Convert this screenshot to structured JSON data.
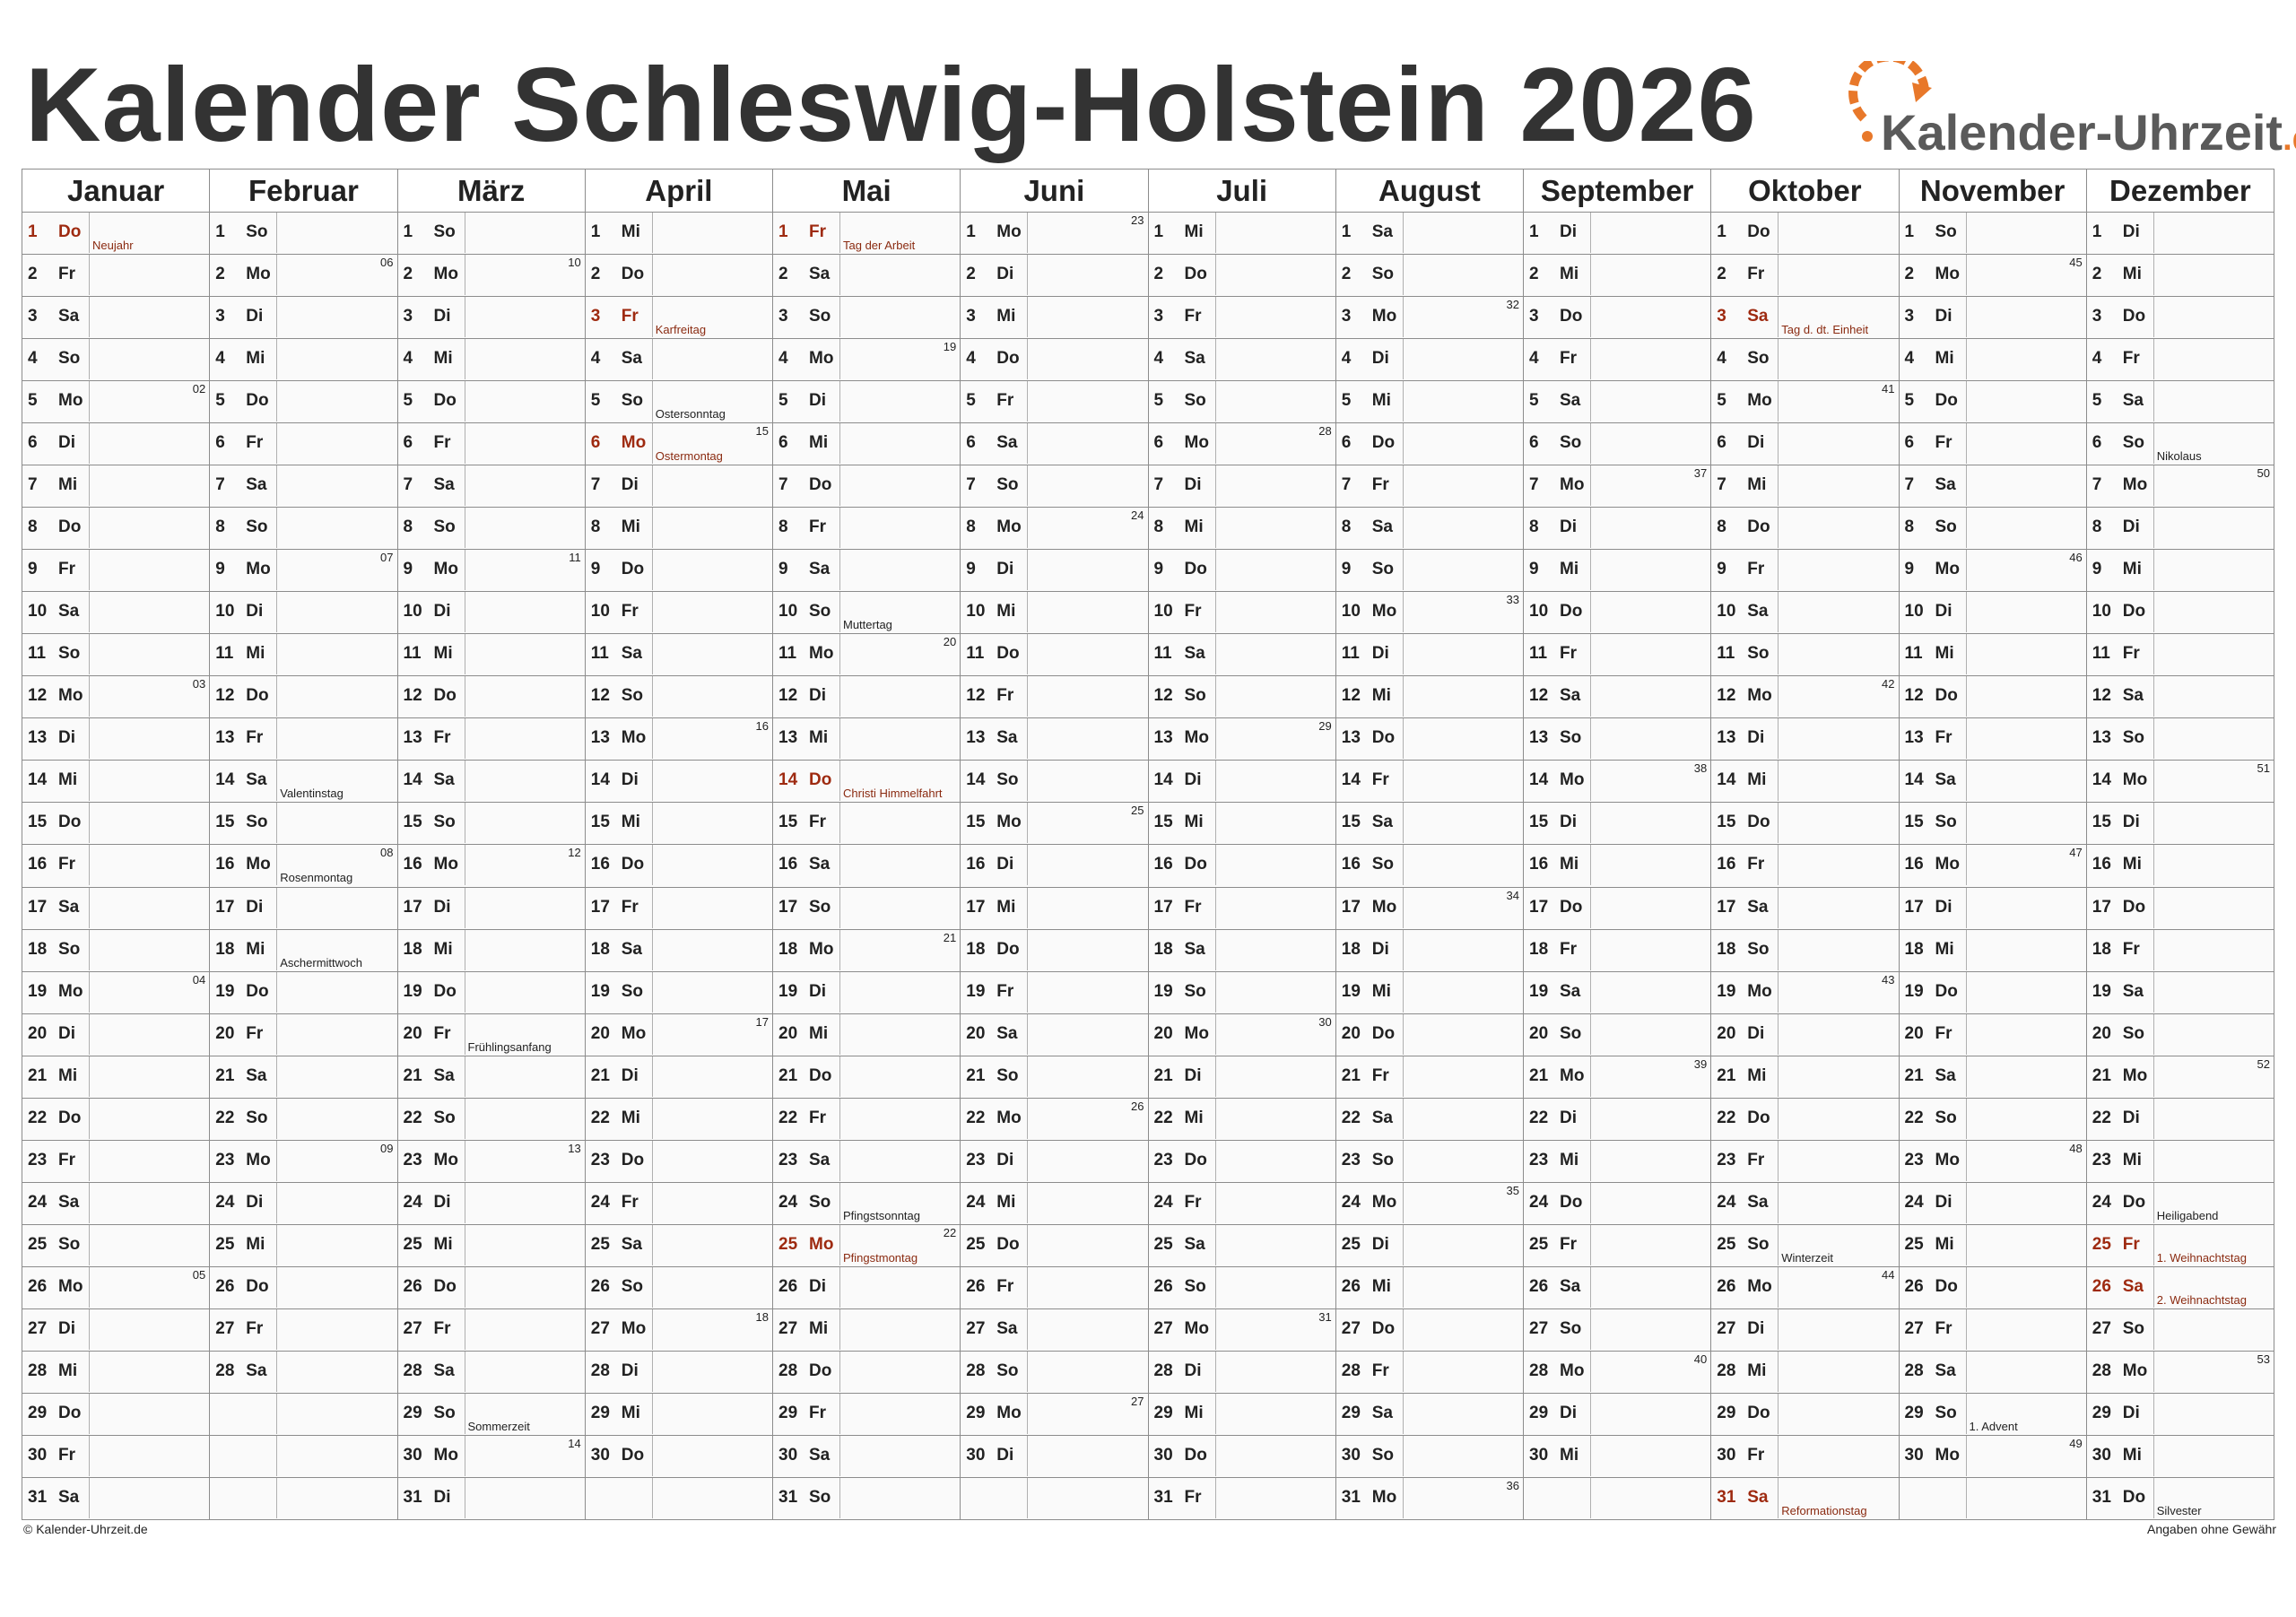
{
  "title": "Kalender Schleswig-Holstein 2026",
  "logo": {
    "name": "Kalender-Uhrzeit",
    "tld": ".de",
    "accent": "#e8782a"
  },
  "colors": {
    "saturday": "#fcc59b",
    "sunday": "#fdd000",
    "holiday_text": "#9e2a10"
  },
  "months": [
    {
      "name": "Januar",
      "first_weekday": 3,
      "days": 31
    },
    {
      "name": "Februar",
      "first_weekday": 6,
      "days": 28
    },
    {
      "name": "März",
      "first_weekday": 6,
      "days": 31
    },
    {
      "name": "April",
      "first_weekday": 2,
      "days": 30
    },
    {
      "name": "Mai",
      "first_weekday": 4,
      "days": 31
    },
    {
      "name": "Juni",
      "first_weekday": 0,
      "days": 30
    },
    {
      "name": "Juli",
      "first_weekday": 2,
      "days": 31
    },
    {
      "name": "August",
      "first_weekday": 5,
      "days": 31
    },
    {
      "name": "September",
      "first_weekday": 1,
      "days": 30
    },
    {
      "name": "Oktober",
      "first_weekday": 3,
      "days": 31
    },
    {
      "name": "November",
      "first_weekday": 6,
      "days": 30
    },
    {
      "name": "Dezember",
      "first_weekday": 1,
      "days": 31
    }
  ],
  "weekday_abbr": [
    "Mo",
    "Di",
    "Mi",
    "Do",
    "Fr",
    "Sa",
    "So"
  ],
  "holidays": [
    {
      "m": 0,
      "d": 1,
      "label": "Neujahr",
      "public": true
    },
    {
      "m": 1,
      "d": 14,
      "label": "Valentinstag",
      "public": false
    },
    {
      "m": 1,
      "d": 16,
      "label": "Rosenmontag",
      "public": false
    },
    {
      "m": 1,
      "d": 18,
      "label": "Aschermittwoch",
      "public": false
    },
    {
      "m": 2,
      "d": 20,
      "label": "Frühlingsanfang",
      "public": false
    },
    {
      "m": 2,
      "d": 29,
      "label": "Sommerzeit",
      "public": false
    },
    {
      "m": 3,
      "d": 3,
      "label": "Karfreitag",
      "public": true
    },
    {
      "m": 3,
      "d": 5,
      "label": "Ostersonntag",
      "public": false
    },
    {
      "m": 3,
      "d": 6,
      "label": "Ostermontag",
      "public": true
    },
    {
      "m": 4,
      "d": 1,
      "label": "Tag der Arbeit",
      "public": true
    },
    {
      "m": 4,
      "d": 10,
      "label": "Muttertag",
      "public": false
    },
    {
      "m": 4,
      "d": 14,
      "label": "Christi Himmelfahrt",
      "public": true
    },
    {
      "m": 4,
      "d": 24,
      "label": "Pfingstsonntag",
      "public": false
    },
    {
      "m": 4,
      "d": 25,
      "label": "Pfingstmontag",
      "public": true
    },
    {
      "m": 9,
      "d": 3,
      "label": "Tag d. dt. Einheit",
      "public": true
    },
    {
      "m": 9,
      "d": 25,
      "label": "Winterzeit",
      "public": false
    },
    {
      "m": 9,
      "d": 31,
      "label": "Reformationstag",
      "public": true
    },
    {
      "m": 10,
      "d": 29,
      "label": "1. Advent",
      "public": false
    },
    {
      "m": 11,
      "d": 6,
      "label": "Nikolaus",
      "public": false
    },
    {
      "m": 11,
      "d": 24,
      "label": "Heiligabend",
      "public": false
    },
    {
      "m": 11,
      "d": 25,
      "label": "1. Weihnachtstag",
      "public": true
    },
    {
      "m": 11,
      "d": 26,
      "label": "2. Weihnachtstag",
      "public": true
    },
    {
      "m": 11,
      "d": 31,
      "label": "Silvester",
      "public": false
    }
  ],
  "footer": {
    "left": "© Kalender-Uhrzeit.de",
    "right": "Angaben ohne Gewähr"
  }
}
